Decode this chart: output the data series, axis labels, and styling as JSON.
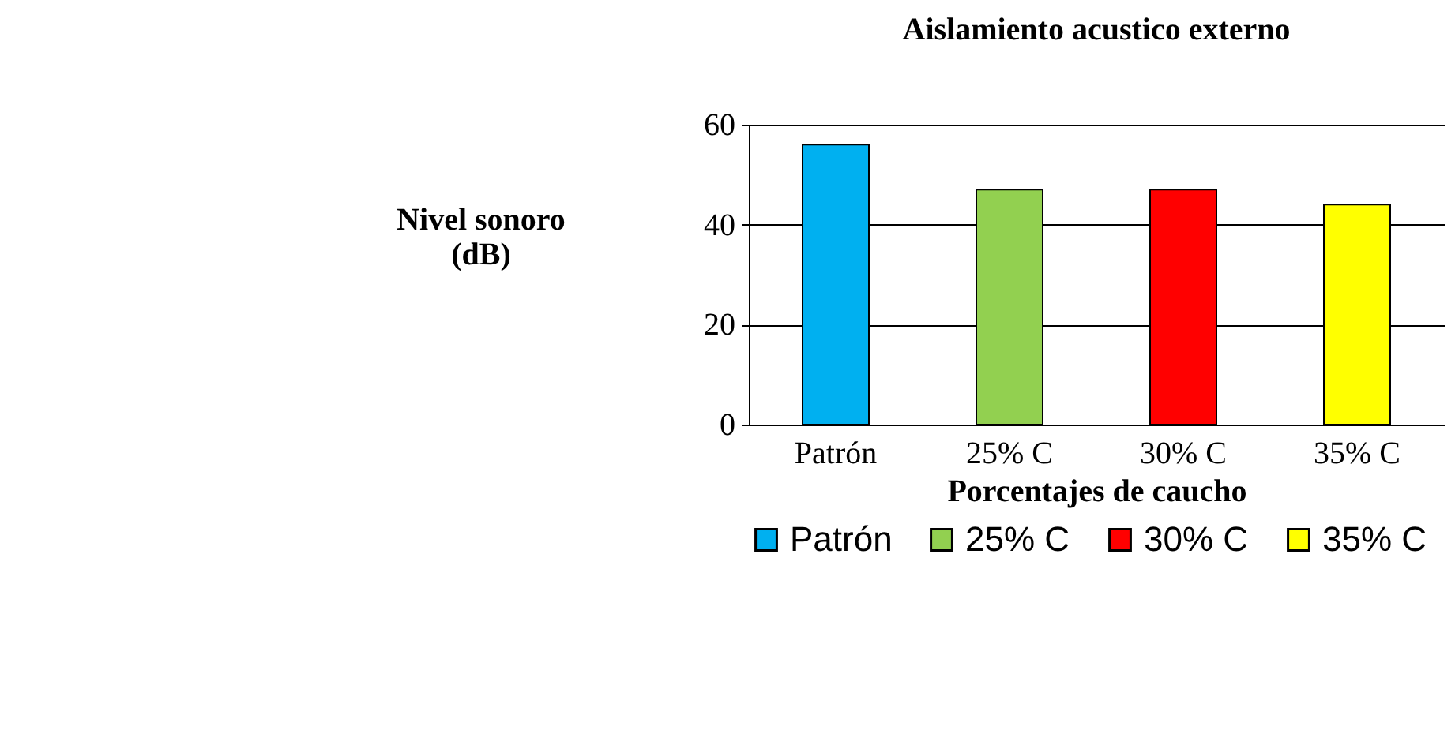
{
  "chart_data": {
    "type": "bar",
    "title": "Aislamiento acustico externo",
    "xlabel": "Porcentajes de caucho",
    "ylabel": "Nivel sonoro (dB)",
    "categories": [
      "Patrón",
      "25% C",
      "30% C",
      "35% C"
    ],
    "series": [
      {
        "name": "Patrón",
        "color": "#00b0f0",
        "values": [
          56,
          null,
          null,
          null
        ]
      },
      {
        "name": "25% C",
        "color": "#92d050",
        "values": [
          null,
          47,
          null,
          null
        ]
      },
      {
        "name": "30% C",
        "color": "#ff0000",
        "values": [
          null,
          null,
          47,
          null
        ]
      },
      {
        "name": "35% C",
        "color": "#ffff00",
        "values": [
          null,
          null,
          null,
          44
        ]
      }
    ],
    "ylim": [
      0,
      60
    ],
    "yticks": [
      0,
      20,
      40,
      60
    ],
    "grid": "y",
    "legend": "bottom"
  }
}
